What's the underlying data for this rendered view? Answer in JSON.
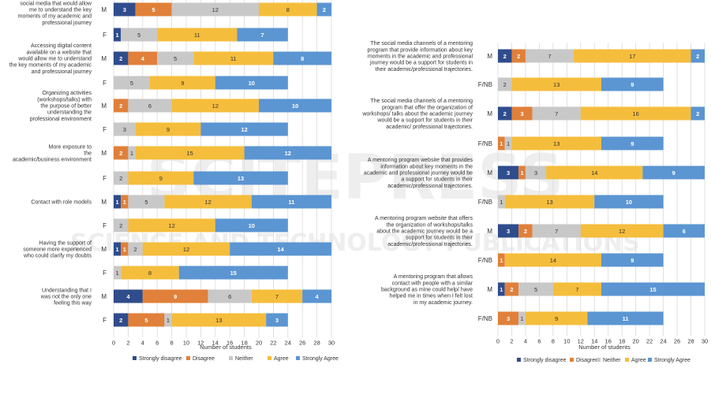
{
  "colors": {
    "Strongly disagree": "#2f4c8c",
    "Disagree": "#e0803a",
    "Neither": "#c8c8c8",
    "Agree": "#f5bd3c",
    "Strongly Agree": "#5b95d2",
    "label_light": "#ffffff",
    "label_dark": "#333333",
    "grid": "#d9d9d9"
  },
  "watermark": {
    "line1": "SCITEPRESS",
    "line2": "SCIENCE AND TECHNOLOGY PUBLICATIONS"
  },
  "chart_data": [
    {
      "type": "bar",
      "orientation": "horizontal-stacked",
      "xlabel": "Number of students",
      "xlim": [
        0,
        30
      ],
      "xticks": [
        0,
        2,
        4,
        6,
        8,
        10,
        12,
        14,
        16,
        18,
        20,
        22,
        24,
        26,
        28,
        30
      ],
      "grid": true,
      "legend_position": "bottom",
      "series_names": [
        "Strongly disagree",
        "Disagree",
        "Neither",
        "Agree",
        "Strongly Agree"
      ],
      "groups": [
        {
          "label": "Accessing digital content on social media that would allow me to understand the key moments of my academic and professional journey",
          "rows": [
            {
              "code": "M",
              "values": [
                3,
                5,
                12,
                8,
                2
              ]
            },
            {
              "code": "F",
              "values": [
                1,
                0,
                5,
                11,
                7
              ]
            }
          ]
        },
        {
          "label": "Accessing digital content available on a website that would allow me to understand the key moments of my academic and professional journey",
          "rows": [
            {
              "code": "M",
              "values": [
                2,
                4,
                5,
                11,
                8
              ]
            },
            {
              "code": "F",
              "values": [
                0,
                0,
                5,
                9,
                10
              ]
            }
          ]
        },
        {
          "label": "Organizing activities (workshops/talks) with the purpose of better understanding the professional environment",
          "rows": [
            {
              "code": "M",
              "values": [
                0,
                2,
                6,
                12,
                10
              ]
            },
            {
              "code": "F",
              "values": [
                0,
                0,
                3,
                9,
                12
              ]
            }
          ]
        },
        {
          "label": "More exposure to the academic/business environment",
          "rows": [
            {
              "code": "M",
              "values": [
                0,
                2,
                1,
                15,
                12
              ]
            },
            {
              "code": "F",
              "values": [
                0,
                0,
                2,
                9,
                13
              ]
            }
          ]
        },
        {
          "label": "Contact with role models",
          "rows": [
            {
              "code": "M",
              "values": [
                1,
                1,
                5,
                12,
                11
              ]
            },
            {
              "code": "F",
              "values": [
                0,
                0,
                2,
                12,
                10
              ]
            }
          ]
        },
        {
          "label": "Having the support of someone more experienced who could clarify my doubts",
          "rows": [
            {
              "code": "M",
              "values": [
                1,
                1,
                2,
                12,
                14
              ]
            },
            {
              "code": "F",
              "values": [
                0,
                0,
                1,
                8,
                15
              ]
            }
          ]
        },
        {
          "label": "Understanding that I was not the only one feeling this way",
          "rows": [
            {
              "code": "M",
              "values": [
                4,
                9,
                6,
                7,
                4
              ]
            },
            {
              "code": "F",
              "values": [
                2,
                5,
                1,
                13,
                3
              ]
            }
          ]
        }
      ]
    },
    {
      "type": "bar",
      "orientation": "horizontal-stacked",
      "xlabel": "Number of students",
      "xlim": [
        0,
        30
      ],
      "xticks": [
        0,
        2,
        4,
        6,
        8,
        10,
        12,
        14,
        16,
        18,
        20,
        22,
        24,
        26,
        28,
        30
      ],
      "grid": true,
      "legend_position": "bottom",
      "series_names": [
        "Strongly disagree",
        "Disagree",
        "Neither",
        "Agree",
        "Strongly Agree"
      ],
      "groups": [
        {
          "label": "The social media channels of a mentoring program that provide information about key moments in the academic and professional journey would be a support for students in their academic/professional trajectories.",
          "rows": [
            {
              "code": "M",
              "values": [
                2,
                2,
                7,
                17,
                2
              ]
            },
            {
              "code": "F/NB",
              "values": [
                0,
                0,
                2,
                13,
                9
              ]
            }
          ]
        },
        {
          "label": "The social media channels of a mentoring program that offer the organization of workshops/ talks about the academic journey would be a support for students in their academic/ professional trajectories.",
          "rows": [
            {
              "code": "M",
              "values": [
                2,
                3,
                7,
                16,
                2
              ]
            },
            {
              "code": "F/NB",
              "values": [
                0,
                1,
                1,
                13,
                9
              ]
            }
          ]
        },
        {
          "label": "A mentoring program website that provides information about key moments in the academic and professional journey would be a support for students in their academic/professional trajectories.",
          "rows": [
            {
              "code": "M",
              "values": [
                3,
                1,
                3,
                14,
                9
              ]
            },
            {
              "code": "F/NB",
              "values": [
                0,
                0,
                1,
                13,
                10
              ]
            }
          ]
        },
        {
          "label": "A mentoring program website that offers the organization of workshops/talks about the academic journey would be a support for students in their academic/professional trajectories.",
          "rows": [
            {
              "code": "M",
              "values": [
                3,
                2,
                7,
                12,
                6
              ]
            },
            {
              "code": "F/NB",
              "values": [
                0,
                1,
                0,
                14,
                9
              ]
            }
          ]
        },
        {
          "label": "A mentoring program that allows contact with people with a similar background as mine could help/ have helped me in times when I felt lost in my academic journey.",
          "rows": [
            {
              "code": "M",
              "values": [
                1,
                2,
                5,
                7,
                15
              ]
            },
            {
              "code": "F/NB",
              "values": [
                0,
                3,
                1,
                9,
                11
              ]
            }
          ]
        }
      ]
    }
  ]
}
